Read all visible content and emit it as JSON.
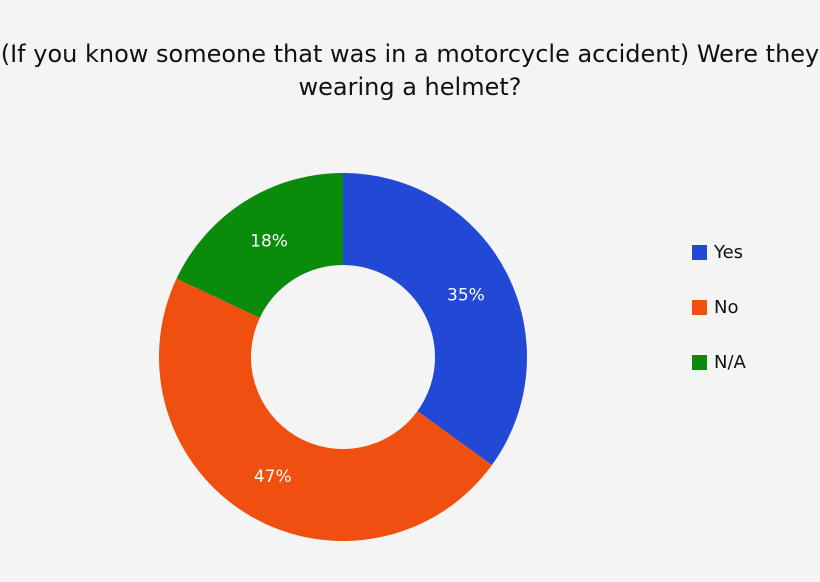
{
  "chart_data": {
    "type": "pie",
    "variant": "donut",
    "title": "(If you know someone that was in a motorcycle accident) Were they wearing a helmet?",
    "categories": [
      "Yes",
      "No",
      "N/A"
    ],
    "values": [
      35,
      47,
      18
    ],
    "labels": [
      "35%",
      "47%",
      "18%"
    ],
    "colors": [
      "#2249d6",
      "#f0500f",
      "#0b8b0b"
    ],
    "legend": "right",
    "background": "#f4f4f4"
  }
}
